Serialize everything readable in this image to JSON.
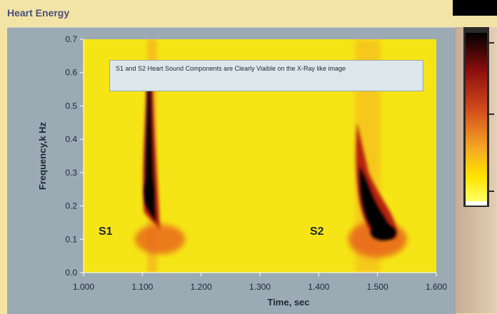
{
  "window": {
    "title": "Heart Energy"
  },
  "chart_data": {
    "type": "heatmap",
    "xlabel": "Time, sec",
    "ylabel": "Frequency,k Hz",
    "xlim": [
      1.0,
      1.6
    ],
    "ylim": [
      0.0,
      0.7
    ],
    "x_ticks": [
      "1.000",
      "1.100",
      "1.200",
      "1.300",
      "1.400",
      "1.500",
      "1.600"
    ],
    "y_ticks": [
      "0.0",
      "0.1",
      "0.2",
      "0.3",
      "0.4",
      "0.5",
      "0.6",
      "0.7"
    ],
    "annotation": "S1 and S2 Heart Sound Components are Clearly Viaible on the X-Ray like image",
    "components": [
      {
        "label": "S1",
        "time_center": 1.115,
        "time_span": [
          1.095,
          1.155
        ],
        "freq_span": [
          0.06,
          0.7
        ],
        "peak_freq": 0.24
      },
      {
        "label": "S2",
        "time_center": 1.5,
        "time_span": [
          1.46,
          1.545
        ],
        "freq_span": [
          0.06,
          0.7
        ],
        "peak_freq": 0.15
      }
    ],
    "colormap": [
      "#000000",
      "#8b0d0d",
      "#d14a1c",
      "#f5a623",
      "#ffe600",
      "#ffff66",
      "#ffffff"
    ],
    "background_color": "#f6e516",
    "grid": false
  }
}
